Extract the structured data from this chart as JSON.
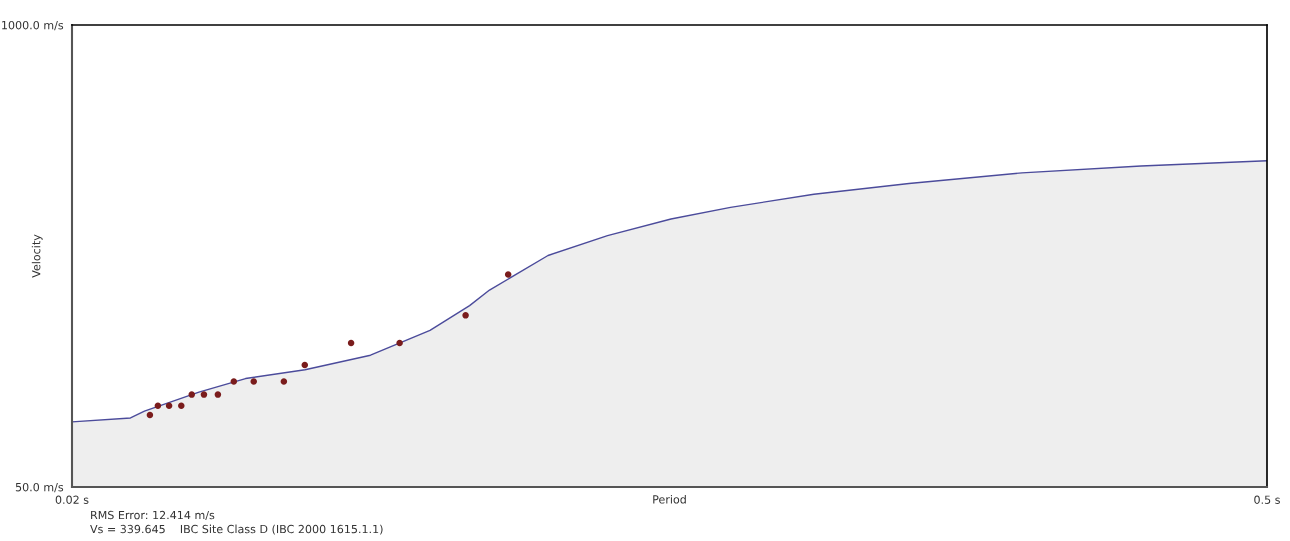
{
  "chart_data": {
    "type": "area",
    "xlabel": "Period",
    "ylabel": "Velocity",
    "xlim": [
      0.02,
      0.5
    ],
    "ylim": [
      50,
      1000
    ],
    "xticks": [
      {
        "value": 0.02,
        "label": "0.02 s"
      },
      {
        "value": 0.5,
        "label": "0.5 s"
      }
    ],
    "yticks": [
      {
        "value": 50,
        "label": "50.0 m/s"
      },
      {
        "value": 1000,
        "label": "1000.0 m/s"
      }
    ],
    "grid": false,
    "legend": false,
    "series": [
      {
        "color": "#4b4b9b",
        "x": [
          0.02,
          0.0435,
          0.0491,
          0.071,
          0.0897,
          0.1136,
          0.1399,
          0.1638,
          0.1797,
          0.1877,
          0.2112,
          0.2351,
          0.2606,
          0.2845,
          0.318,
          0.3562,
          0.4016,
          0.4494,
          0.5
        ],
        "values": [
          184,
          192,
          206,
          245,
          273,
          291,
          321,
          372,
          423,
          455,
          526,
          567,
          601,
          625,
          652,
          674,
          696,
          710,
          721
        ]
      },
      {
        "type": "scatter",
        "color": "#7a1c1c",
        "marker": "circle",
        "x": [
          0.0513,
          0.0545,
          0.059,
          0.0639,
          0.0681,
          0.073,
          0.0786,
          0.085,
          0.093,
          0.1051,
          0.1135,
          0.1321,
          0.1516,
          0.1781,
          0.1952
        ],
        "values": [
          198,
          217,
          217,
          217,
          240,
          240,
          240,
          267,
          267,
          267,
          301,
          346,
          346,
          403,
          487
        ]
      }
    ],
    "annotations": [
      "RMS Error: 12.414 m/s",
      "Vs = 339.645    IBC Site Class D (IBC 2000 1615.1.1)"
    ]
  }
}
